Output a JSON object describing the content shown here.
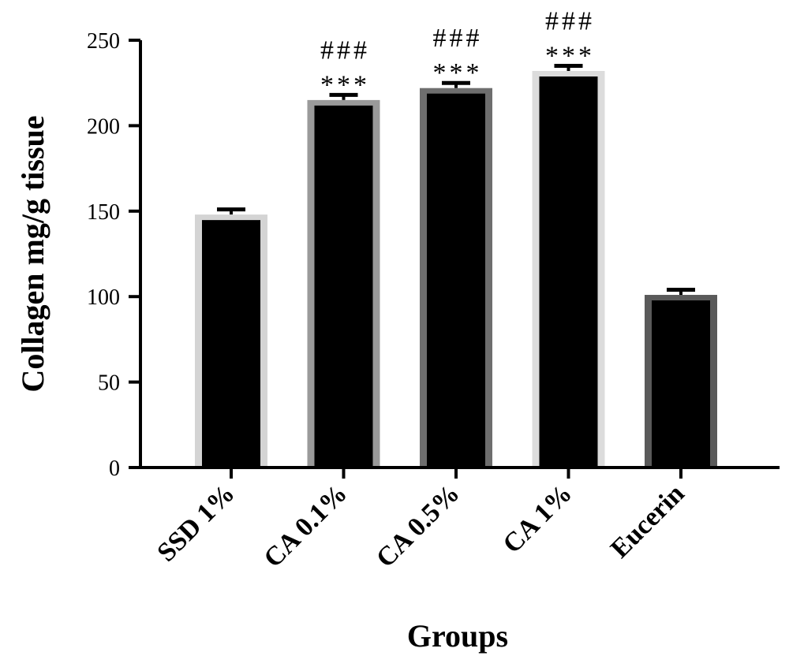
{
  "chart_data": {
    "type": "bar",
    "title": "",
    "xlabel": "Groups",
    "ylabel": "Collagen mg/g tissue",
    "ylim": [
      0,
      250
    ],
    "yticks": [
      0,
      50,
      100,
      150,
      200,
      250
    ],
    "categories": [
      "SSD 1%",
      "CA 0.1%",
      "CA 0.5%",
      "CA 1%",
      "Eucerin"
    ],
    "values": [
      148,
      215,
      222,
      232,
      101
    ],
    "errors": [
      3,
      3,
      3,
      3,
      3
    ],
    "bar_fill": "#000000",
    "bar_outlines": [
      "#d4d4d4",
      "#9a9a9a",
      "#6e6e6e",
      "#dcdcdc",
      "#5a5a5a"
    ],
    "annotations": [
      {
        "category": "CA 0.1%",
        "lines": [
          "###",
          "***"
        ]
      },
      {
        "category": "CA 0.5%",
        "lines": [
          "###",
          "***"
        ]
      },
      {
        "category": "CA 1%",
        "lines": [
          "###",
          "***"
        ]
      }
    ],
    "grid": false,
    "legend": "none"
  }
}
